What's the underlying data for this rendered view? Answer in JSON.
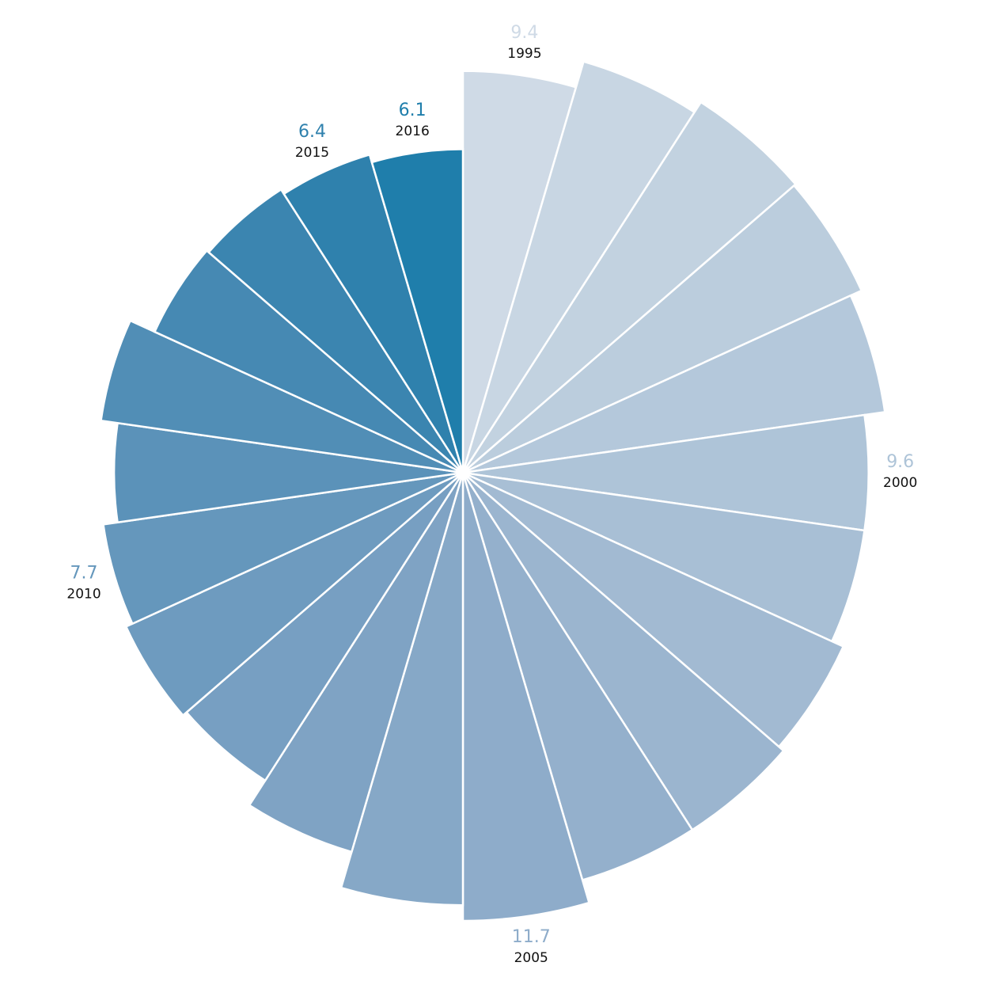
{
  "chart_data": {
    "type": "polar-area",
    "categories": [
      "1995",
      null,
      null,
      null,
      null,
      "2000",
      null,
      null,
      null,
      null,
      "2005",
      null,
      null,
      null,
      null,
      "2010",
      null,
      null,
      null,
      null,
      "2015",
      "2016"
    ],
    "values": [
      9.4,
      10.7,
      11.3,
      11.2,
      10.6,
      9.6,
      9.6,
      10.2,
      10.5,
      10.5,
      11.7,
      10.9,
      9.1,
      7.8,
      8.0,
      7.7,
      7.1,
      7.8,
      6.7,
      6.6,
      6.4,
      6.1
    ],
    "colors": [
      "#cfdae6",
      "#c8d6e3",
      "#c2d2e0",
      "#bbcddd",
      "#b4c8db",
      "#aec4d8",
      "#a8bfd5",
      "#a2bad2",
      "#9bb5cf",
      "#94b0cc",
      "#8eacca",
      "#86a8c7",
      "#7fa3c4",
      "#779fc2",
      "#6e9bbf",
      "#6597bc",
      "#5b92b9",
      "#518eb6",
      "#4689b3",
      "#3b85b0",
      "#2f81ad",
      "#1f7eab"
    ]
  }
}
